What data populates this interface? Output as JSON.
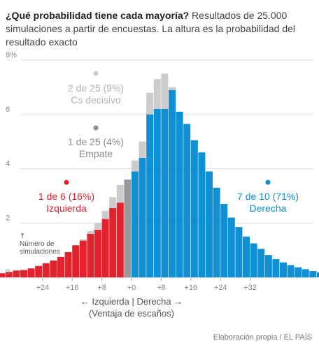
{
  "title": {
    "bold": "¿Qué probabilidad tiene cada mayoría?",
    "rest": " Resultados de 25.000 simulaciones a partir de encuestas. La altura es la probabilidad del resultado exacto"
  },
  "credit": "Elaboración propia / EL PAÍS",
  "colors": {
    "left": "#e4222e",
    "right": "#0f8fd4",
    "cs": "#cccccc",
    "tie": "#999999",
    "cs_label": "#b4b4b4",
    "tie_label": "#8c8c8c",
    "grid": "#dddddd",
    "axis_text": "#888888"
  },
  "chart_data": {
    "type": "bar",
    "x_label_line1": "← Izquierda | Derecha →",
    "x_label_line2": "(Ventaja de escaños)",
    "y_annotation": [
      "↑",
      "Número de",
      "simulaciones"
    ],
    "y_ticks": [
      0,
      2,
      4,
      6,
      8
    ],
    "y_tick_labels": [
      "0",
      "2",
      "4",
      "6",
      "8%"
    ],
    "ylim": [
      0,
      8
    ],
    "x_ticks": [
      -24,
      -16,
      -8,
      0,
      8,
      16,
      24,
      32
    ],
    "x_tick_labels": [
      "+24",
      "+16",
      "+8",
      "+0",
      "+8",
      "+16",
      "+24",
      "+32"
    ],
    "bin_width": 2,
    "bins": [
      {
        "x": -37,
        "total": 0.12,
        "cs": 0
      },
      {
        "x": -35,
        "total": 0.15,
        "cs": 0
      },
      {
        "x": -33,
        "total": 0.2,
        "cs": 0
      },
      {
        "x": -31,
        "total": 0.25,
        "cs": 0
      },
      {
        "x": -29,
        "total": 0.27,
        "cs": 0
      },
      {
        "x": -27,
        "total": 0.33,
        "cs": 0
      },
      {
        "x": -25,
        "total": 0.42,
        "cs": 0
      },
      {
        "x": -23,
        "total": 0.52,
        "cs": 0
      },
      {
        "x": -21,
        "total": 0.62,
        "cs": 0
      },
      {
        "x": -19,
        "total": 0.75,
        "cs": 0
      },
      {
        "x": -17,
        "total": 0.93,
        "cs": 0
      },
      {
        "x": -15,
        "total": 1.18,
        "cs": 0
      },
      {
        "x": -13,
        "total": 1.4,
        "cs": 0.05
      },
      {
        "x": -11,
        "total": 1.7,
        "cs": 0.1
      },
      {
        "x": -9,
        "total": 2.0,
        "cs": 0.25
      },
      {
        "x": -7,
        "total": 2.45,
        "cs": 0.3
      },
      {
        "x": -5,
        "total": 2.95,
        "cs": 0.4
      },
      {
        "x": -3,
        "total": 3.4,
        "cs": 0.65
      },
      {
        "x": -1,
        "total": 3.6,
        "cs": 0,
        "tie": true
      },
      {
        "x": 1,
        "total": 4.3,
        "cs": 0.4
      },
      {
        "x": 3,
        "total": 5.0,
        "cs": 0.6
      },
      {
        "x": 5,
        "total": 6.8,
        "cs": 0.8
      },
      {
        "x": 7,
        "total": 7.3,
        "cs": 1.1
      },
      {
        "x": 9,
        "total": 7.5,
        "cs": 1.3
      },
      {
        "x": 11,
        "total": 7.0,
        "cs": 0.1
      },
      {
        "x": 13,
        "total": 6.1,
        "cs": 0
      },
      {
        "x": 15,
        "total": 5.65,
        "cs": 0
      },
      {
        "x": 17,
        "total": 5.05,
        "cs": 0
      },
      {
        "x": 19,
        "total": 4.6,
        "cs": 0
      },
      {
        "x": 21,
        "total": 3.9,
        "cs": 0
      },
      {
        "x": 23,
        "total": 3.3,
        "cs": 0
      },
      {
        "x": 25,
        "total": 2.7,
        "cs": 0
      },
      {
        "x": 27,
        "total": 2.2,
        "cs": 0
      },
      {
        "x": 29,
        "total": 1.85,
        "cs": 0
      },
      {
        "x": 31,
        "total": 1.5,
        "cs": 0
      },
      {
        "x": 33,
        "total": 1.25,
        "cs": 0
      },
      {
        "x": 35,
        "total": 1.05,
        "cs": 0
      },
      {
        "x": 37,
        "total": 0.82,
        "cs": 0
      },
      {
        "x": 39,
        "total": 0.67,
        "cs": 0
      },
      {
        "x": 41,
        "total": 0.55,
        "cs": 0
      },
      {
        "x": 43,
        "total": 0.45,
        "cs": 0
      },
      {
        "x": 45,
        "total": 0.37,
        "cs": 0
      },
      {
        "x": 47,
        "total": 0.3,
        "cs": 0
      },
      {
        "x": 49,
        "total": 0.23,
        "cs": 0
      },
      {
        "x": 51,
        "total": 0.18,
        "cs": 0
      },
      {
        "x": 53,
        "total": 0.15,
        "cs": 0
      }
    ],
    "annotations": {
      "cs": {
        "line1": "2 de 25 (9%)",
        "line2": "Cs decisivo"
      },
      "tie": {
        "line1": "1 de 25 (4%)",
        "line2": "Empate"
      },
      "left": {
        "line1": "1 de 6 (16%)",
        "line2": "Izquierda"
      },
      "right": {
        "line1": "7 de 10 (71%)",
        "line2": "Derecha"
      }
    }
  }
}
